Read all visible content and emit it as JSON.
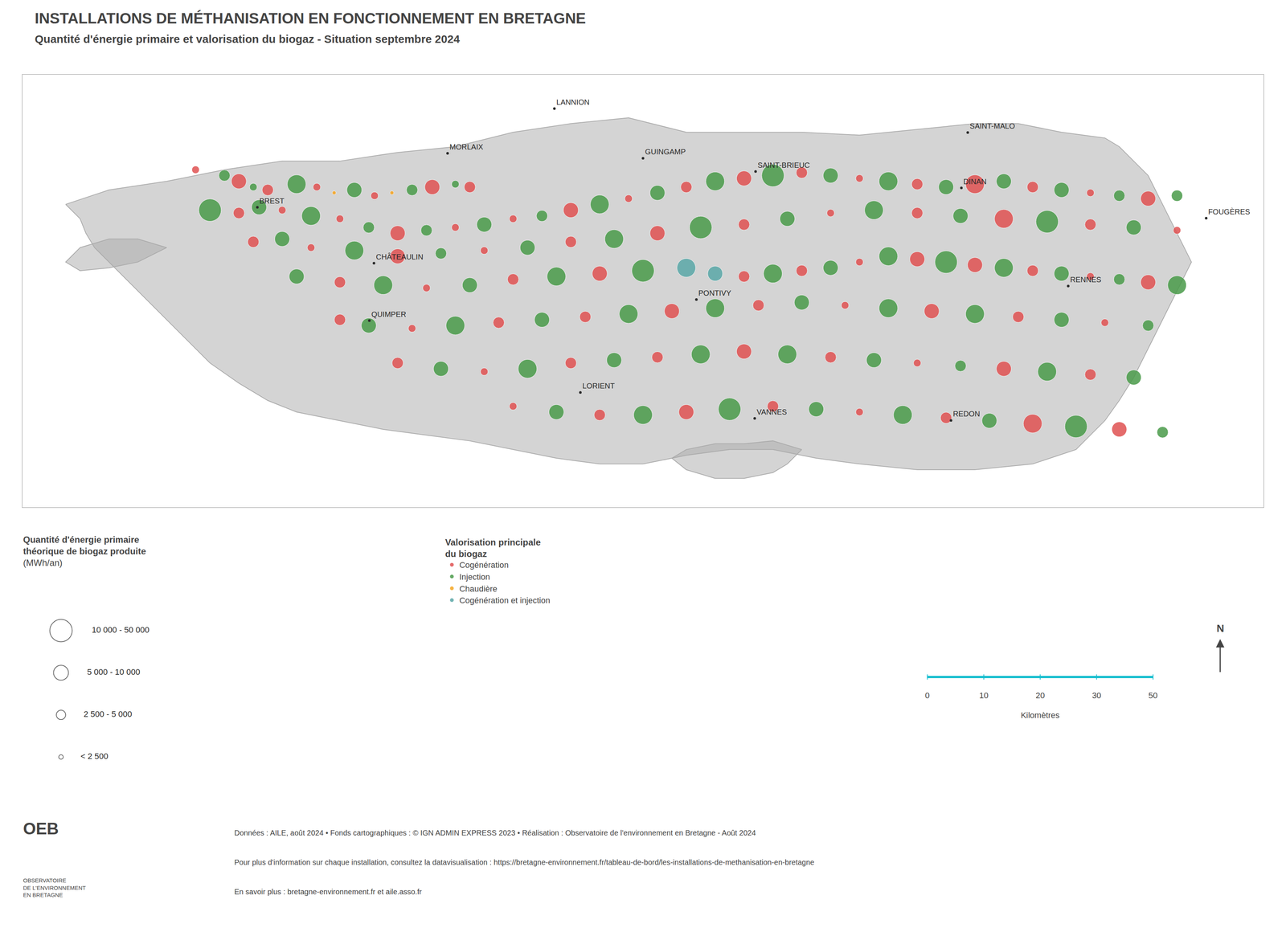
{
  "chart_data": {
    "type": "scatter",
    "title": "INSTALLATIONS DE MÉTHANISATION EN FONCTIONNEMENT EN BRETAGNE",
    "subtitle": "Quantité d'énergie primaire et valorisation du biogaz - Situation septembre 2024",
    "xlim": [
      -5.3,
      -1.0
    ],
    "ylim": [
      47.35,
      48.85
    ],
    "tick_labels": false,
    "grid": false,
    "legend": "bottom",
    "legend_title": [
      "Valorisation principale",
      "du biogaz"
    ],
    "map_outlines": [
      {
        "color": "#AAAAAA",
        "x": [
          -5.15,
          -5.0,
          -4.8,
          -4.6,
          -4.4,
          -4.2,
          -4.0,
          -3.8,
          -3.6,
          -3.4,
          -3.2,
          -3.0,
          -2.8,
          -2.6,
          -2.4,
          -2.2,
          -2.0,
          -1.85,
          -1.7,
          -1.55,
          -1.5,
          -1.45,
          -1.4,
          -1.35,
          -1.3,
          -1.25,
          -1.3,
          -1.35,
          -1.4,
          -1.45,
          -1.5,
          -1.55,
          -1.6,
          -1.65,
          -1.8,
          -2.0,
          -2.2,
          -2.4,
          -2.55,
          -2.7,
          -2.85,
          -3.0,
          -3.15,
          -3.3,
          -3.45,
          -3.6,
          -3.75,
          -3.9,
          -4.05,
          -4.2,
          -4.35,
          -4.45,
          -4.55,
          -4.65,
          -4.7,
          -4.75,
          -4.8,
          -4.85,
          -4.9,
          -4.95,
          -5.0,
          -5.05,
          -5.08,
          -5.1,
          -5.15
        ],
        "y": [
          48.4,
          48.45,
          48.48,
          48.52,
          48.55,
          48.55,
          48.58,
          48.6,
          48.65,
          48.68,
          48.7,
          48.65,
          48.65,
          48.65,
          48.64,
          48.66,
          48.68,
          48.68,
          48.65,
          48.63,
          48.6,
          48.55,
          48.5,
          48.4,
          48.3,
          48.2,
          48.1,
          48.0,
          47.9,
          47.8,
          47.72,
          47.65,
          47.6,
          47.55,
          47.5,
          47.48,
          47.48,
          47.5,
          47.52,
          47.55,
          47.55,
          47.53,
          47.5,
          47.5,
          47.52,
          47.55,
          47.58,
          47.6,
          47.62,
          47.65,
          47.68,
          47.72,
          47.78,
          47.85,
          47.9,
          47.95,
          48.0,
          48.05,
          48.1,
          48.15,
          48.2,
          48.25,
          48.3,
          48.35,
          48.4
        ]
      },
      {
        "color": "#AAAAAA",
        "x": [
          -4.8,
          -4.9,
          -5.0,
          -5.1,
          -5.15,
          -5.1,
          -5.0,
          -4.9,
          -4.8
        ],
        "y": [
          48.25,
          48.2,
          48.18,
          48.17,
          48.2,
          48.25,
          48.28,
          48.28,
          48.25
        ]
      },
      {
        "color": "#AAAAAA",
        "x": [
          -2.6,
          -2.65,
          -2.7,
          -2.8,
          -2.9,
          -3.0,
          -3.05,
          -3.0,
          -2.9,
          -2.8,
          -2.7,
          -2.6
        ],
        "y": [
          47.55,
          47.5,
          47.47,
          47.45,
          47.45,
          47.48,
          47.52,
          47.55,
          47.57,
          47.57,
          47.58,
          47.55
        ]
      }
    ],
    "series": [
      {
        "name": "Cogénération",
        "color": "#E05252",
        "x": [
          -4.7,
          -4.55,
          -4.45,
          -4.28,
          -4.08,
          -3.88,
          -3.75,
          -4.55,
          -4.4,
          -4.2,
          -4.0,
          -3.8,
          -3.6,
          -3.4,
          -3.2,
          -3.0,
          -2.8,
          -2.6,
          -2.4,
          -2.2,
          -2.0,
          -1.8,
          -1.6,
          -1.4,
          -4.5,
          -4.3,
          -4.0,
          -3.7,
          -3.4,
          -3.1,
          -2.8,
          -2.5,
          -2.2,
          -1.9,
          -1.6,
          -1.3,
          -4.2,
          -3.9,
          -3.6,
          -3.3,
          -2.8,
          -2.6,
          -2.4,
          -2.2,
          -2.0,
          -1.8,
          -1.6,
          -1.4,
          -4.2,
          -3.95,
          -3.65,
          -3.35,
          -3.05,
          -2.75,
          -2.45,
          -2.15,
          -1.85,
          -1.55,
          -4.0,
          -3.7,
          -3.4,
          -3.1,
          -2.8,
          -2.5,
          -2.2,
          -1.9,
          -1.6,
          -3.6,
          -3.3,
          -3.0,
          -2.7,
          -2.4,
          -2.1,
          -1.8,
          -1.5
        ],
        "y": [
          48.52,
          48.48,
          48.45,
          48.46,
          48.43,
          48.46,
          48.46,
          48.37,
          48.38,
          48.35,
          48.3,
          48.32,
          48.35,
          48.38,
          48.42,
          48.46,
          48.49,
          48.51,
          48.49,
          48.47,
          48.47,
          48.46,
          48.44,
          48.42,
          48.27,
          48.25,
          48.22,
          48.24,
          48.27,
          48.3,
          48.33,
          48.37,
          48.37,
          48.35,
          48.33,
          48.31,
          48.13,
          48.11,
          48.14,
          48.16,
          48.15,
          48.17,
          48.2,
          48.21,
          48.19,
          48.17,
          48.15,
          48.13,
          48.0,
          47.97,
          47.99,
          48.01,
          48.03,
          48.05,
          48.05,
          48.03,
          48.01,
          47.99,
          47.85,
          47.82,
          47.85,
          47.87,
          47.89,
          47.87,
          47.85,
          47.83,
          47.81,
          47.7,
          47.67,
          47.68,
          47.7,
          47.68,
          47.66,
          47.64,
          47.62
        ],
        "size": [
          2,
          4,
          3,
          2,
          2,
          4,
          3,
          3,
          2,
          2,
          4,
          2,
          2,
          4,
          2,
          3,
          4,
          3,
          2,
          3,
          5,
          3,
          2,
          4,
          3,
          2,
          4,
          2,
          3,
          4,
          3,
          2,
          3,
          5,
          3,
          2,
          3,
          2,
          3,
          4,
          3,
          3,
          2,
          4,
          4,
          3,
          2,
          4,
          3,
          2,
          3,
          3,
          4,
          3,
          2,
          4,
          3,
          2,
          3,
          2,
          3,
          3,
          4,
          3,
          2,
          4,
          3,
          2,
          3,
          4,
          3,
          2,
          3,
          5,
          4
        ]
      },
      {
        "name": "Injection",
        "color": "#4A9B4A",
        "x": [
          -4.6,
          -4.5,
          -4.35,
          -4.15,
          -3.95,
          -3.8,
          -4.65,
          -4.48,
          -4.3,
          -4.1,
          -3.9,
          -3.7,
          -3.5,
          -3.3,
          -3.1,
          -2.9,
          -2.7,
          -2.5,
          -2.3,
          -2.1,
          -1.9,
          -1.7,
          -1.5,
          -1.3,
          -4.4,
          -4.15,
          -3.85,
          -3.55,
          -3.25,
          -2.95,
          -2.65,
          -2.35,
          -2.05,
          -1.75,
          -1.45,
          -4.35,
          -4.05,
          -3.75,
          -3.45,
          -3.15,
          -2.7,
          -2.5,
          -2.3,
          -2.1,
          -1.9,
          -1.7,
          -1.5,
          -1.3,
          -4.1,
          -3.8,
          -3.5,
          -3.2,
          -2.9,
          -2.6,
          -2.3,
          -2.0,
          -1.7,
          -1.4,
          -3.85,
          -3.55,
          -3.25,
          -2.95,
          -2.65,
          -2.35,
          -2.05,
          -1.75,
          -1.45,
          -3.45,
          -3.15,
          -2.85,
          -2.55,
          -2.25,
          -1.95,
          -1.65,
          -1.35
        ],
        "y": [
          48.5,
          48.46,
          48.47,
          48.45,
          48.45,
          48.47,
          48.38,
          48.39,
          48.36,
          48.32,
          48.31,
          48.33,
          48.36,
          48.4,
          48.44,
          48.48,
          48.5,
          48.5,
          48.48,
          48.46,
          48.48,
          48.45,
          48.43,
          48.43,
          48.28,
          48.24,
          48.23,
          48.25,
          48.28,
          48.32,
          48.35,
          48.38,
          48.36,
          48.34,
          48.32,
          48.15,
          48.12,
          48.12,
          48.15,
          48.17,
          48.16,
          48.18,
          48.22,
          48.2,
          48.18,
          48.16,
          48.14,
          48.12,
          47.98,
          47.98,
          48.0,
          48.02,
          48.04,
          48.06,
          48.04,
          48.02,
          48.0,
          47.98,
          47.83,
          47.83,
          47.86,
          47.88,
          47.88,
          47.86,
          47.84,
          47.82,
          47.8,
          47.68,
          47.67,
          47.69,
          47.69,
          47.67,
          47.65,
          47.63,
          47.61
        ],
        "size": [
          3,
          2,
          5,
          4,
          3,
          2,
          6,
          4,
          5,
          3,
          3,
          4,
          3,
          5,
          4,
          5,
          6,
          4,
          5,
          4,
          4,
          4,
          3,
          3,
          4,
          5,
          3,
          4,
          5,
          6,
          4,
          5,
          4,
          6,
          4,
          4,
          5,
          4,
          5,
          6,
          5,
          4,
          5,
          6,
          5,
          4,
          3,
          5,
          4,
          5,
          4,
          5,
          5,
          4,
          5,
          5,
          4,
          3,
          4,
          5,
          4,
          5,
          5,
          4,
          3,
          5,
          4,
          4,
          5,
          6,
          4,
          5,
          4,
          6,
          3
        ]
      },
      {
        "name": "Chaudière",
        "color": "#F5A623",
        "x": [
          -4.22,
          -4.02
        ],
        "y": [
          48.44,
          48.44
        ],
        "size": [
          1,
          1
        ]
      },
      {
        "name": "Cogénération et injection",
        "color": "#5BA8A8",
        "x": [
          -3.0,
          -2.9
        ],
        "y": [
          48.18,
          48.16
        ],
        "size": [
          5,
          4
        ]
      }
    ],
    "cities": {
      "color": "#2A2A2A",
      "names": [
        "BREST",
        "MORLAIX",
        "LANNION",
        "GUINGAMP",
        "SAINT-BRIEUC",
        "SAINT-MALO",
        "DINAN",
        "FOUGÈRES",
        "RENNES",
        "REDON",
        "VANNES",
        "LORIENT",
        "PONTIVY",
        "QUIMPER",
        "CHÂTEAULIN"
      ],
      "x": [
        -4.486,
        -3.827,
        -3.457,
        -3.15,
        -2.76,
        -2.025,
        -2.047,
        -1.199,
        -1.677,
        -2.083,
        -2.763,
        -3.367,
        -2.965,
        -4.098,
        -4.082
      ],
      "y": [
        48.39,
        48.577,
        48.732,
        48.56,
        48.514,
        48.649,
        48.457,
        48.352,
        48.117,
        47.651,
        47.658,
        47.748,
        48.07,
        47.997,
        48.196
      ]
    },
    "size_legend": {
      "title": [
        "Quantité d'énergie primaire",
        "théorique de biogaz produite",
        "(MWh/an)"
      ],
      "color": "#2A2A2A",
      "values": [
        6,
        4,
        2.5,
        1.2
      ],
      "labels": [
        "10 000 - 50 000",
        "5 000 - 10 000",
        "2 500 - 5 000",
        "< 2 500"
      ]
    },
    "scale_bar": {
      "labels": [
        "0",
        "10",
        "20",
        "30",
        "50"
      ],
      "title": "Kilomètres"
    },
    "north_label": "N",
    "footer": [
      "Données : AILE, août 2024 • Fonds cartographiques : © IGN ADMIN EXPRESS 2023 • Réalisation : Observatoire de l'environnement en Bretagne - Août 2024",
      "Pour plus d'information sur chaque installation, consultez la datavisualisation : https://bretagne-environnement.fr/tableau-de-bord/les-installations-de-methanisation-en-bretagne",
      "En savoir plus : bretagne-environnement.fr et aile.asso.fr"
    ],
    "logo": {
      "title": "OEB",
      "lines": [
        "OBSERVATOIRE",
        "DE L'ENVIRONNEMENT",
        "EN BRETAGNE"
      ]
    }
  }
}
